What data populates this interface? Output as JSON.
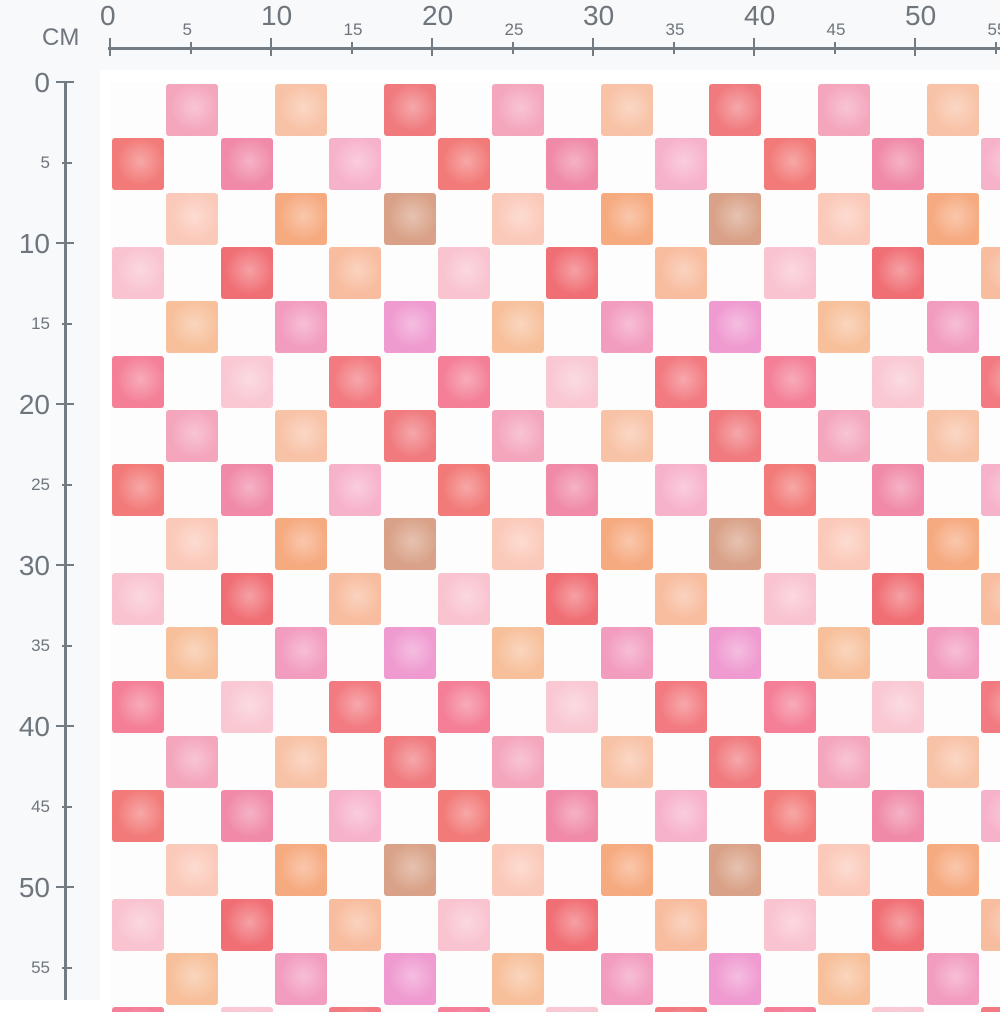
{
  "ruler": {
    "unit": "CM",
    "top_labels": [
      "0",
      "5",
      "10",
      "15",
      "20",
      "25",
      "30",
      "35",
      "40",
      "45",
      "50",
      "55"
    ],
    "left_labels": [
      "0",
      "5",
      "10",
      "15",
      "20",
      "25",
      "30",
      "35",
      "40",
      "45",
      "50",
      "55"
    ]
  },
  "pattern": {
    "name": "watercolor checkerboard",
    "palette_rows": [
      [
        "#f4a6bd",
        "#f8c2a6",
        "#f07a7e"
      ],
      [
        "#f27a78",
        "#f08aa8",
        "#f7b2cb"
      ],
      [
        "#fbc9b9",
        "#f6aa80",
        "#d9a288"
      ],
      [
        "#f9c3d0",
        "#f06f75",
        "#f8bc9e"
      ],
      [
        "#f7c09b",
        "#f29cc0",
        "#ef9ad0"
      ],
      [
        "#f47f97",
        "#f9c8d3",
        "#f27a80"
      ]
    ]
  }
}
